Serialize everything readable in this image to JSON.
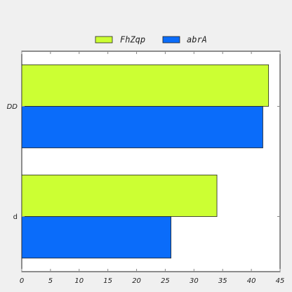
{
  "chart_data": {
    "type": "bar",
    "orientation": "horizontal",
    "categories": [
      "DD",
      "d"
    ],
    "series": [
      {
        "name": "FhZqp",
        "values": [
          43,
          34
        ],
        "color": "#ccff33"
      },
      {
        "name": "abrA",
        "values": [
          42,
          26
        ],
        "color": "#0a6cfa"
      }
    ],
    "xlim": [
      0,
      45
    ],
    "xticks": [
      0,
      5,
      10,
      15,
      20,
      25,
      30,
      35,
      40,
      45
    ],
    "title": "",
    "xlabel": "",
    "ylabel": "",
    "legend": "top-center",
    "grid": false
  }
}
